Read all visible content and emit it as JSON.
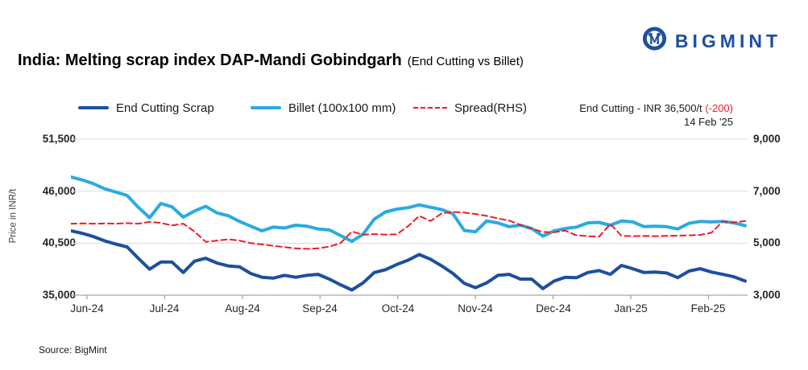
{
  "logo": {
    "text": "BIGMINT",
    "icon": "bigmint-circle-m-icon",
    "color": "#1d4f9e"
  },
  "title": {
    "main": "India: Melting scrap index DAP-Mandi Gobindgarh",
    "sub": "(End Cutting vs Billet)"
  },
  "legend": {
    "items": [
      {
        "label": "End Cutting Scrap",
        "color": "#1d4f9e",
        "style": "solid"
      },
      {
        "label": "Billet (100x100 mm)",
        "color": "#2aaae1",
        "style": "solid"
      },
      {
        "label": "Spread(RHS)",
        "color": "#ee1c25",
        "style": "dashed"
      }
    ]
  },
  "annotation": {
    "price_label": "End Cutting - INR 36,500/t",
    "change": "(-200)",
    "date": "14 Feb '25"
  },
  "source": "Source: BigMint",
  "chart_data": {
    "type": "line",
    "title": "India: Melting scrap index DAP-Mandi Gobindgarh (End Cutting vs Billet)",
    "grid": "horizontal",
    "legend_position": "top",
    "x_ticks": [
      "Jun-24",
      "Jul-24",
      "Aug-24",
      "Sep-24",
      "Oct-24",
      "Nov-24",
      "Dec-24",
      "Jan-25",
      "Feb-25"
    ],
    "left_axis": {
      "label": "Price in INR/t",
      "ticks": [
        "51,500",
        "46,000",
        "40,500",
        "35,000"
      ],
      "min": 35000,
      "max": 51500
    },
    "right_axis": {
      "ticks": [
        "9,000",
        "7,000",
        "5,000",
        "3,000"
      ],
      "min": 3000,
      "max": 9000
    },
    "series": [
      {
        "name": "End Cutting Scrap",
        "axis": "left",
        "color": "#1d4f9e",
        "style": "solid",
        "width": 4,
        "values": [
          41800,
          41550,
          41200,
          40750,
          40400,
          40100,
          38900,
          37750,
          38500,
          38500,
          37400,
          38600,
          38900,
          38400,
          38100,
          38000,
          37300,
          36900,
          36800,
          37100,
          36900,
          37100,
          37200,
          36700,
          36100,
          35550,
          36300,
          37400,
          37700,
          38250,
          38700,
          39300,
          38800,
          38100,
          37300,
          36250,
          35800,
          36300,
          37100,
          37200,
          36700,
          36700,
          35700,
          36500,
          36900,
          36850,
          37400,
          37600,
          37200,
          38150,
          37800,
          37400,
          37450,
          37350,
          36850,
          37550,
          37800,
          37450,
          37200,
          36950,
          36500
        ]
      },
      {
        "name": "Billet (100x100 mm)",
        "axis": "left",
        "color": "#2aaae1",
        "style": "solid",
        "width": 4,
        "values": [
          47500,
          47200,
          46800,
          46250,
          45900,
          45550,
          44300,
          43200,
          44700,
          44350,
          43250,
          43900,
          44400,
          43700,
          43400,
          42800,
          42300,
          41800,
          42200,
          42100,
          42400,
          42300,
          42000,
          41900,
          41300,
          40700,
          41450,
          43050,
          43800,
          44100,
          44250,
          44550,
          44300,
          44050,
          43600,
          41850,
          41700,
          42850,
          42650,
          42250,
          42400,
          42050,
          41250,
          41800,
          42050,
          42200,
          42650,
          42700,
          42400,
          42850,
          42750,
          42250,
          42300,
          42250,
          42000,
          42600,
          42800,
          42750,
          42800,
          42650,
          42350
        ]
      },
      {
        "name": "Spread(RHS)",
        "axis": "right",
        "color": "#ee1c25",
        "style": "dashed",
        "width": 2,
        "values": [
          5750,
          5760,
          5750,
          5760,
          5750,
          5770,
          5750,
          5820,
          5780,
          5680,
          5750,
          5450,
          5050,
          5100,
          5150,
          5100,
          5000,
          4950,
          4900,
          4850,
          4800,
          4780,
          4800,
          4870,
          5000,
          5450,
          5330,
          5350,
          5330,
          5340,
          5650,
          6050,
          5850,
          6150,
          6200,
          6180,
          6120,
          6050,
          5950,
          5870,
          5700,
          5560,
          5430,
          5420,
          5480,
          5300,
          5270,
          5250,
          5740,
          5280,
          5270,
          5280,
          5270,
          5280,
          5290,
          5300,
          5320,
          5400,
          5840,
          5800,
          5850
        ]
      }
    ]
  }
}
